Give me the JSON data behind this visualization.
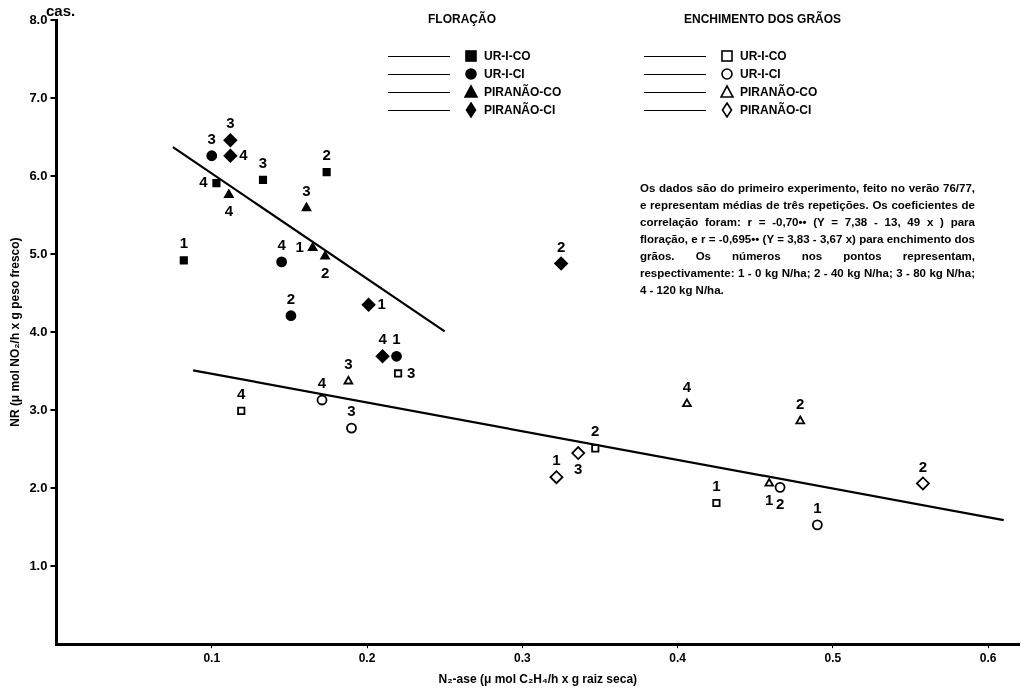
{
  "chart_data": {
    "type": "scatter",
    "xlabel": "N₂-ase (μ mol C₂H₄/h x g raiz seca)",
    "ylabel": "NR (μ mol NO₂/h x g peso fresco)",
    "xlim": [
      0,
      0.62
    ],
    "xticks": [
      0.1,
      0.2,
      0.3,
      0.4,
      0.5,
      0.6
    ],
    "ylim": [
      0,
      8
    ],
    "yticks": [
      {
        "value": 1,
        "label": "1.0"
      },
      {
        "value": 2,
        "label": "2.0"
      },
      {
        "value": 3,
        "label": "3.0"
      },
      {
        "value": 4,
        "label": "4.0"
      },
      {
        "value": 5,
        "label": "5.0"
      },
      {
        "value": 6,
        "label": "6.0"
      },
      {
        "value": 7,
        "label": "7.0"
      },
      {
        "value": 8,
        "label": "8.0"
      }
    ],
    "grid": false,
    "legend": "top",
    "annotations": [
      "cas.",
      "FLORAÇÃO",
      "ENCHIMENTO DOS GRÃOS",
      "Os dados são do primeiro experimento, feito no verão 76/77, e representam médias de três repetições. Os coeficientes de correlação foram: r = -0,70•• (Y = 7,38 - 13, 49 x ) para floração, e r = -0,695•• (Y = 3,83 - 3,67 x) para enchimento dos grãos. Os números nos pontos representam, respectivamente: 1 - 0 kg N/ha; 2 - 40 kg N/ha; 3 - 80 kg N/ha; 4 - 120 kg N/ha.",
      {
        "text": "1",
        "x": 0.082,
        "y": 4.92
      },
      {
        "text": "4",
        "x": 0.103,
        "y": 5.91
      },
      {
        "text": "3",
        "x": 0.133,
        "y": 5.95
      },
      {
        "text": "2",
        "x": 0.174,
        "y": 6.05
      },
      {
        "text": "3",
        "x": 0.1,
        "y": 6.26
      },
      {
        "text": "4",
        "x": 0.145,
        "y": 4.9
      },
      {
        "text": "2",
        "x": 0.151,
        "y": 4.21
      },
      {
        "text": "1",
        "x": 0.219,
        "y": 3.69
      },
      {
        "text": "4",
        "x": 0.111,
        "y": 5.76
      },
      {
        "text": "3",
        "x": 0.161,
        "y": 5.59
      },
      {
        "text": "1",
        "x": 0.165,
        "y": 5.08
      },
      {
        "text": "2",
        "x": 0.173,
        "y": 4.97
      },
      {
        "text": "3",
        "x": 0.112,
        "y": 6.46
      },
      {
        "text": "4",
        "x": 0.112,
        "y": 6.26
      },
      {
        "text": "1",
        "x": 0.201,
        "y": 4.35
      },
      {
        "text": "4",
        "x": 0.21,
        "y": 3.69
      },
      {
        "text": "2",
        "x": 0.325,
        "y": 4.88
      },
      {
        "text": "4",
        "x": 0.119,
        "y": 2.99
      },
      {
        "text": "3",
        "x": 0.22,
        "y": 3.47
      },
      {
        "text": "2",
        "x": 0.347,
        "y": 2.51
      },
      {
        "text": "1",
        "x": 0.425,
        "y": 1.81
      },
      {
        "text": "4",
        "x": 0.171,
        "y": 3.13
      },
      {
        "text": "3",
        "x": 0.19,
        "y": 2.77
      },
      {
        "text": "2",
        "x": 0.466,
        "y": 2.01
      },
      {
        "text": "1",
        "x": 0.49,
        "y": 1.53
      },
      {
        "text": "3",
        "x": 0.188,
        "y": 3.37
      },
      {
        "text": "4",
        "x": 0.406,
        "y": 3.08
      },
      {
        "text": "1",
        "x": 0.459,
        "y": 2.06
      },
      {
        "text": "2",
        "x": 0.479,
        "y": 2.86
      },
      {
        "text": "1",
        "x": 0.322,
        "y": 2.14
      },
      {
        "text": "3",
        "x": 0.336,
        "y": 2.45
      },
      {
        "text": "2",
        "x": 0.558,
        "y": 2.06
      }
    ],
    "series": [
      {
        "name": "UR-I-CO",
        "color": "#000000",
        "marker": "square",
        "x": [
          0.082,
          0.103,
          0.133,
          0.174
        ],
        "values": [
          4.92,
          5.91,
          5.95,
          6.05
        ]
      },
      {
        "name": "UR-I-CI",
        "color": "#000000",
        "marker": "circle",
        "x": [
          0.1,
          0.145,
          0.151,
          0.219
        ],
        "values": [
          6.26,
          4.9,
          4.21,
          3.69
        ]
      },
      {
        "name": "PIRANÃO-CO",
        "color": "#000000",
        "marker": "triangle",
        "x": [
          0.111,
          0.161,
          0.165,
          0.173
        ],
        "values": [
          5.76,
          5.59,
          5.08,
          4.97
        ]
      },
      {
        "name": "PIRANÃO-CI",
        "color": "#000000",
        "marker": "diamond",
        "x": [
          0.112,
          0.112,
          0.201,
          0.21,
          0.325
        ],
        "values": [
          6.46,
          6.26,
          4.35,
          3.69,
          4.88
        ]
      },
      {
        "name": "UR-I-CO",
        "color": "#ffffff",
        "marker": "square",
        "x": [
          0.119,
          0.22,
          0.347,
          0.425
        ],
        "values": [
          2.99,
          3.47,
          2.51,
          1.81
        ]
      },
      {
        "name": "UR-I-CI",
        "color": "#ffffff",
        "marker": "circle",
        "x": [
          0.171,
          0.19,
          0.466,
          0.49
        ],
        "values": [
          3.13,
          2.77,
          2.01,
          1.53
        ]
      },
      {
        "name": "PIRANÃO-CO",
        "color": "#ffffff",
        "marker": "triangle",
        "x": [
          0.188,
          0.406,
          0.459,
          0.479
        ],
        "values": [
          3.37,
          3.08,
          2.06,
          2.86
        ]
      },
      {
        "name": "PIRANÃO-CI",
        "color": "#ffffff",
        "marker": "diamond",
        "x": [
          0.322,
          0.336,
          0.558
        ],
        "values": [
          2.14,
          2.45,
          2.06
        ]
      },
      {
        "type": "line",
        "color": "#000000",
        "marker": "none",
        "x": [
          0.075,
          0.25
        ],
        "values": [
          6.37,
          4.01
        ]
      },
      {
        "type": "line",
        "color": "#000000",
        "marker": "none",
        "x": [
          0.088,
          0.61
        ],
        "values": [
          3.51,
          1.59
        ]
      }
    ]
  }
}
